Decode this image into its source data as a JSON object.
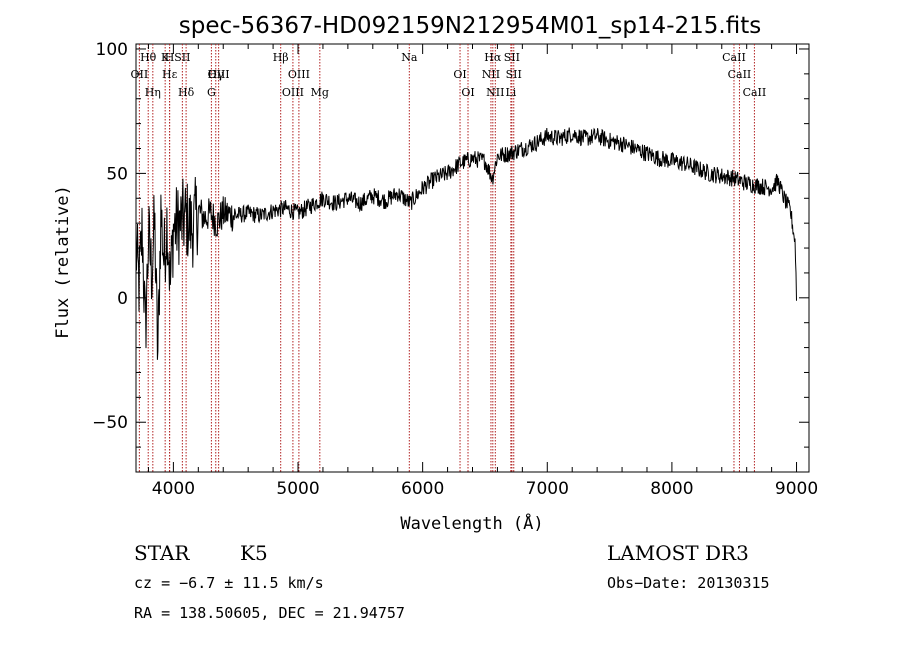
{
  "chart_data": {
    "type": "line",
    "title": "spec-56367-HD092159N212954M01_sp14-215.fits",
    "xlabel": "Wavelength (Å)",
    "ylabel": "Flux (relative)",
    "xlim": [
      3700,
      9100
    ],
    "ylim": [
      -70,
      102
    ],
    "xticks": [
      4000,
      5000,
      6000,
      7000,
      8000,
      9000
    ],
    "yticks": [
      -50,
      0,
      50,
      100
    ],
    "grid": false,
    "line_color": "#000000",
    "marker_color": "#b22222",
    "series": [
      {
        "name": "flux",
        "x": [
          3700,
          3725,
          3750,
          3775,
          3800,
          3825,
          3850,
          3875,
          3900,
          3925,
          3950,
          3975,
          4000,
          4050,
          4100,
          4150,
          4200,
          4250,
          4300,
          4350,
          4400,
          4500,
          4600,
          4700,
          4800,
          4900,
          5000,
          5100,
          5200,
          5300,
          5400,
          5500,
          5600,
          5700,
          5800,
          5900,
          6000,
          6100,
          6200,
          6300,
          6400,
          6500,
          6560,
          6600,
          6700,
          6800,
          6900,
          7000,
          7100,
          7200,
          7300,
          7400,
          7500,
          7600,
          7700,
          7800,
          7900,
          8000,
          8100,
          8200,
          8300,
          8400,
          8500,
          8600,
          8700,
          8800,
          8850,
          8900,
          8950,
          8990,
          9000
        ],
        "y": [
          20,
          5,
          28,
          -15,
          25,
          10,
          30,
          -25,
          35,
          15,
          32,
          5,
          28,
          30,
          32,
          28,
          35,
          32,
          34,
          30,
          34,
          33,
          34,
          33,
          35,
          36,
          34,
          37,
          40,
          38,
          40,
          38,
          41,
          39,
          42,
          38,
          44,
          48,
          50,
          54,
          56,
          55,
          48,
          57,
          58,
          60,
          62,
          65,
          64,
          66,
          64,
          65,
          63,
          62,
          60,
          58,
          56,
          55,
          54,
          52,
          50,
          49,
          48,
          46,
          45,
          44,
          47,
          40,
          35,
          22,
          0
        ]
      }
    ],
    "annotations": [
      {
        "label": "Hθ",
        "x": 3798
      },
      {
        "label": "OII",
        "x": 3727
      },
      {
        "label": "Hη",
        "x": 3835
      },
      {
        "label": "K",
        "x": 3934
      },
      {
        "label": "Hε",
        "x": 3970
      },
      {
        "label": "Hδ",
        "x": 4102
      },
      {
        "label": "H",
        "x": 3969
      },
      {
        "label": "OIII",
        "x": 4363
      },
      {
        "label": "G",
        "x": 4305
      },
      {
        "label": "SII",
        "x": 4072
      },
      {
        "label": "Hγ",
        "x": 4340
      },
      {
        "label": "OIII",
        "x": 4959
      },
      {
        "label": "Hβ",
        "x": 4861
      },
      {
        "label": "OIII",
        "x": 5007
      },
      {
        "label": "Mg",
        "x": 5175
      },
      {
        "label": "Na",
        "x": 5893
      },
      {
        "label": "OI",
        "x": 6300
      },
      {
        "label": "OI",
        "x": 6364
      },
      {
        "label": "Hα",
        "x": 6563
      },
      {
        "label": "NII",
        "x": 6548
      },
      {
        "label": "NII",
        "x": 6583
      },
      {
        "label": "SII",
        "x": 6716
      },
      {
        "label": "SII",
        "x": 6731
      },
      {
        "label": "Li",
        "x": 6708
      },
      {
        "label": "CaII",
        "x": 8498
      },
      {
        "label": "CaII",
        "x": 8542
      },
      {
        "label": "CaII",
        "x": 8662
      }
    ]
  },
  "info": {
    "object_class": "STAR",
    "subclass": "K5",
    "survey": "LAMOST DR3",
    "cz": "cz = −6.7 ± 11.5 km/s",
    "obs_date": "Obs−Date: 20130315",
    "coords": "RA = 138.50605, DEC =  21.94757"
  }
}
